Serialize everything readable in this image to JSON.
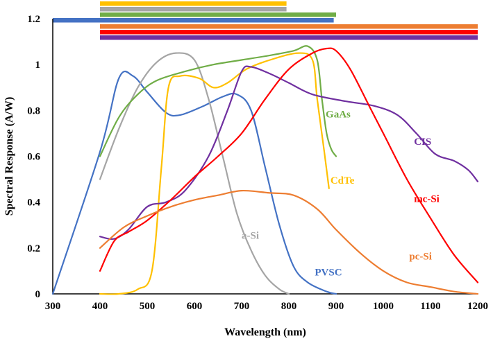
{
  "chart_data": {
    "type": "line",
    "xlabel": "Wavelength (nm)",
    "ylabel": "Spectral Response (A/W)",
    "xlim": [
      300,
      1200
    ],
    "ylim": [
      0,
      1.2
    ],
    "x_ticks": [
      "300",
      "400",
      "500",
      "600",
      "700",
      "800",
      "900",
      "1000",
      "1100",
      "1200"
    ],
    "y_ticks": [
      "0",
      "0.2",
      "0.4",
      "0.6",
      "0.8",
      "1",
      "1.2"
    ],
    "grid": false,
    "series": [
      {
        "name": "PVSC",
        "color": "#4472C4",
        "points": [
          [
            300,
            0
          ],
          [
            400,
            0.62
          ],
          [
            440,
            0.94
          ],
          [
            470,
            0.95
          ],
          [
            500,
            0.88
          ],
          [
            540,
            0.79
          ],
          [
            570,
            0.78
          ],
          [
            620,
            0.82
          ],
          [
            660,
            0.86
          ],
          [
            690,
            0.87
          ],
          [
            720,
            0.8
          ],
          [
            750,
            0.55
          ],
          [
            780,
            0.3
          ],
          [
            810,
            0.12
          ],
          [
            840,
            0.05
          ],
          [
            880,
            0.01
          ],
          [
            900,
            0
          ]
        ]
      },
      {
        "name": "a-Si",
        "color": "#A5A5A5",
        "points": [
          [
            400,
            0.5
          ],
          [
            440,
            0.72
          ],
          [
            480,
            0.9
          ],
          [
            520,
            1.01
          ],
          [
            560,
            1.05
          ],
          [
            600,
            1.02
          ],
          [
            630,
            0.85
          ],
          [
            660,
            0.6
          ],
          [
            690,
            0.35
          ],
          [
            720,
            0.19
          ],
          [
            750,
            0.08
          ],
          [
            780,
            0.02
          ],
          [
            800,
            0
          ]
        ]
      },
      {
        "name": "GaAs",
        "color": "#70AD47",
        "points": [
          [
            400,
            0.6
          ],
          [
            440,
            0.77
          ],
          [
            480,
            0.87
          ],
          [
            520,
            0.93
          ],
          [
            580,
            0.97
          ],
          [
            640,
            1.0
          ],
          [
            700,
            1.02
          ],
          [
            760,
            1.04
          ],
          [
            810,
            1.06
          ],
          [
            840,
            1.08
          ],
          [
            860,
            1.02
          ],
          [
            870,
            0.85
          ],
          [
            880,
            0.7
          ],
          [
            890,
            0.63
          ],
          [
            900,
            0.6
          ]
        ]
      },
      {
        "name": "CdTe",
        "color": "#FFC000",
        "points": [
          [
            400,
            0
          ],
          [
            440,
            0
          ],
          [
            480,
            0.02
          ],
          [
            510,
            0.1
          ],
          [
            530,
            0.55
          ],
          [
            545,
            0.9
          ],
          [
            570,
            0.95
          ],
          [
            610,
            0.94
          ],
          [
            640,
            0.9
          ],
          [
            670,
            0.92
          ],
          [
            710,
            0.98
          ],
          [
            760,
            1.02
          ],
          [
            820,
            1.05
          ],
          [
            850,
            1.02
          ],
          [
            860,
            0.85
          ],
          [
            875,
            0.62
          ],
          [
            885,
            0.46
          ]
        ]
      },
      {
        "name": "CIS",
        "color": "#7030A0",
        "points": [
          [
            400,
            0.25
          ],
          [
            430,
            0.24
          ],
          [
            460,
            0.28
          ],
          [
            500,
            0.38
          ],
          [
            540,
            0.4
          ],
          [
            580,
            0.45
          ],
          [
            630,
            0.6
          ],
          [
            670,
            0.8
          ],
          [
            700,
            0.97
          ],
          [
            720,
            0.99
          ],
          [
            760,
            0.96
          ],
          [
            800,
            0.92
          ],
          [
            850,
            0.87
          ],
          [
            920,
            0.84
          ],
          [
            980,
            0.82
          ],
          [
            1030,
            0.78
          ],
          [
            1070,
            0.7
          ],
          [
            1110,
            0.61
          ],
          [
            1150,
            0.58
          ],
          [
            1180,
            0.54
          ],
          [
            1200,
            0.49
          ]
        ]
      },
      {
        "name": "mc-Si",
        "color": "#FF0000",
        "points": [
          [
            400,
            0.1
          ],
          [
            430,
            0.23
          ],
          [
            460,
            0.27
          ],
          [
            500,
            0.32
          ],
          [
            550,
            0.41
          ],
          [
            600,
            0.51
          ],
          [
            650,
            0.6
          ],
          [
            700,
            0.7
          ],
          [
            750,
            0.85
          ],
          [
            800,
            0.98
          ],
          [
            850,
            1.05
          ],
          [
            880,
            1.07
          ],
          [
            900,
            1.06
          ],
          [
            930,
            0.98
          ],
          [
            970,
            0.82
          ],
          [
            1000,
            0.7
          ],
          [
            1050,
            0.5
          ],
          [
            1100,
            0.33
          ],
          [
            1150,
            0.17
          ],
          [
            1200,
            0.05
          ]
        ]
      },
      {
        "name": "pc-Si",
        "color": "#ED7D31",
        "points": [
          [
            400,
            0.2
          ],
          [
            450,
            0.29
          ],
          [
            500,
            0.34
          ],
          [
            550,
            0.38
          ],
          [
            600,
            0.41
          ],
          [
            650,
            0.43
          ],
          [
            700,
            0.45
          ],
          [
            760,
            0.44
          ],
          [
            810,
            0.43
          ],
          [
            860,
            0.37
          ],
          [
            900,
            0.28
          ],
          [
            950,
            0.18
          ],
          [
            1000,
            0.1
          ],
          [
            1050,
            0.05
          ],
          [
            1100,
            0.03
          ],
          [
            1150,
            0.01
          ],
          [
            1200,
            0
          ]
        ]
      }
    ],
    "band_bars": [
      {
        "name": "CdTe",
        "color": "#FFC000",
        "x": [
          400,
          795
        ]
      },
      {
        "name": "a-Si",
        "color": "#A5A5A5",
        "x": [
          400,
          795
        ]
      },
      {
        "name": "GaAs",
        "color": "#70AD47",
        "x": [
          400,
          900
        ]
      },
      {
        "name": "PVSC",
        "color": "#4472C4",
        "x": [
          300,
          895
        ]
      },
      {
        "name": "pc-Si",
        "color": "#ED7D31",
        "x": [
          400,
          1200
        ]
      },
      {
        "name": "mc-Si",
        "color": "#FF0000",
        "x": [
          400,
          1200
        ]
      },
      {
        "name": "CIS",
        "color": "#7030A0",
        "x": [
          400,
          1200
        ]
      }
    ],
    "annotations": [
      {
        "text": "GaAs",
        "color": "#70AD47",
        "x": 878,
        "y": 0.77
      },
      {
        "text": "CIS",
        "color": "#7030A0",
        "x": 1065,
        "y": 0.65
      },
      {
        "text": "CdTe",
        "color": "#FFC000",
        "x": 888,
        "y": 0.48
      },
      {
        "text": "mc-Si",
        "color": "#FF0000",
        "x": 1065,
        "y": 0.4
      },
      {
        "text": "a-Si",
        "color": "#A5A5A5",
        "x": 700,
        "y": 0.24
      },
      {
        "text": "pc-Si",
        "color": "#ED7D31",
        "x": 1055,
        "y": 0.15
      },
      {
        "text": "PVSC",
        "color": "#4472C4",
        "x": 855,
        "y": 0.08
      }
    ]
  }
}
